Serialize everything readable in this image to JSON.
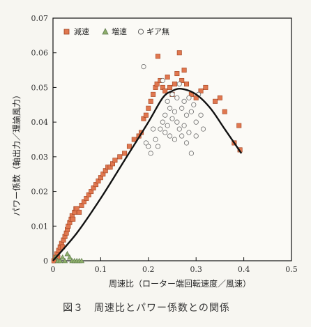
{
  "caption": "図３　周速比とパワー係数との関係",
  "chart_data": {
    "type": "scatter",
    "xlabel": "周速比（ローター端回転速度／風速）",
    "ylabel": "パワー係数（軸出力／理論風力）",
    "xlim": [
      0,
      0.5
    ],
    "ylim": [
      0,
      0.07
    ],
    "xticks": [
      "0",
      "0.1",
      "0.2",
      "0.3",
      "0.4",
      "0.5"
    ],
    "yticks": [
      "0",
      "0.01",
      "0.02",
      "0.03",
      "0.04",
      "0.05",
      "0.06",
      "0.07"
    ],
    "legend_position": "top-left",
    "series": [
      {
        "name": "減速",
        "marker": "square",
        "color": "#e0774f",
        "points": [
          [
            0.002,
            0.0
          ],
          [
            0.005,
            0.001
          ],
          [
            0.008,
            0.002
          ],
          [
            0.01,
            0.001
          ],
          [
            0.012,
            0.003
          ],
          [
            0.015,
            0.004
          ],
          [
            0.018,
            0.005
          ],
          [
            0.02,
            0.004
          ],
          [
            0.022,
            0.006
          ],
          [
            0.025,
            0.007
          ],
          [
            0.028,
            0.008
          ],
          [
            0.03,
            0.009
          ],
          [
            0.032,
            0.01
          ],
          [
            0.035,
            0.011
          ],
          [
            0.038,
            0.012
          ],
          [
            0.04,
            0.013
          ],
          [
            0.042,
            0.012
          ],
          [
            0.045,
            0.014
          ],
          [
            0.048,
            0.015
          ],
          [
            0.05,
            0.015
          ],
          [
            0.055,
            0.014
          ],
          [
            0.06,
            0.016
          ],
          [
            0.065,
            0.017
          ],
          [
            0.07,
            0.018
          ],
          [
            0.075,
            0.019
          ],
          [
            0.08,
            0.02
          ],
          [
            0.085,
            0.021
          ],
          [
            0.09,
            0.022
          ],
          [
            0.095,
            0.023
          ],
          [
            0.1,
            0.024
          ],
          [
            0.105,
            0.025
          ],
          [
            0.11,
            0.026
          ],
          [
            0.115,
            0.027
          ],
          [
            0.12,
            0.027
          ],
          [
            0.125,
            0.028
          ],
          [
            0.13,
            0.029
          ],
          [
            0.14,
            0.03
          ],
          [
            0.15,
            0.031
          ],
          [
            0.16,
            0.033
          ],
          [
            0.17,
            0.035
          ],
          [
            0.18,
            0.036
          ],
          [
            0.185,
            0.037
          ],
          [
            0.19,
            0.041
          ],
          [
            0.195,
            0.042
          ],
          [
            0.2,
            0.044
          ],
          [
            0.205,
            0.046
          ],
          [
            0.21,
            0.048
          ],
          [
            0.215,
            0.05
          ],
          [
            0.218,
            0.051
          ],
          [
            0.22,
            0.059
          ],
          [
            0.225,
            0.052
          ],
          [
            0.23,
            0.05
          ],
          [
            0.235,
            0.049
          ],
          [
            0.24,
            0.053
          ],
          [
            0.245,
            0.05
          ],
          [
            0.25,
            0.048
          ],
          [
            0.255,
            0.051
          ],
          [
            0.26,
            0.054
          ],
          [
            0.265,
            0.06
          ],
          [
            0.27,
            0.052
          ],
          [
            0.275,
            0.055
          ],
          [
            0.28,
            0.051
          ],
          [
            0.29,
            0.048
          ],
          [
            0.3,
            0.047
          ],
          [
            0.31,
            0.049
          ],
          [
            0.32,
            0.05
          ],
          [
            0.34,
            0.046
          ],
          [
            0.35,
            0.047
          ],
          [
            0.36,
            0.043
          ],
          [
            0.38,
            0.034
          ],
          [
            0.39,
            0.039
          ],
          [
            0.392,
            0.032
          ]
        ]
      },
      {
        "name": "増速",
        "marker": "triangle",
        "color": "#8fae6b",
        "points": [
          [
            0.005,
            0.001
          ],
          [
            0.01,
            0.0
          ],
          [
            0.015,
            0.0
          ],
          [
            0.02,
            0.001
          ],
          [
            0.025,
            0.0
          ],
          [
            0.03,
            0.002
          ],
          [
            0.035,
            0.001
          ],
          [
            0.04,
            0.0
          ],
          [
            0.045,
            0.0
          ],
          [
            0.05,
            0.0
          ],
          [
            0.055,
            0.0
          ],
          [
            0.06,
            0.0
          ]
        ]
      },
      {
        "name": "ギア無",
        "marker": "circle",
        "color": "#6b6b6b",
        "points": [
          [
            0.19,
            0.056
          ],
          [
            0.195,
            0.034
          ],
          [
            0.2,
            0.033
          ],
          [
            0.205,
            0.031
          ],
          [
            0.21,
            0.038
          ],
          [
            0.215,
            0.035
          ],
          [
            0.22,
            0.033
          ],
          [
            0.225,
            0.038
          ],
          [
            0.23,
            0.04
          ],
          [
            0.23,
            0.052
          ],
          [
            0.235,
            0.042
          ],
          [
            0.235,
            0.037
          ],
          [
            0.24,
            0.046
          ],
          [
            0.24,
            0.039
          ],
          [
            0.245,
            0.044
          ],
          [
            0.245,
            0.036
          ],
          [
            0.25,
            0.048
          ],
          [
            0.25,
            0.041
          ],
          [
            0.255,
            0.043
          ],
          [
            0.255,
            0.035
          ],
          [
            0.26,
            0.047
          ],
          [
            0.26,
            0.04
          ],
          [
            0.265,
            0.051
          ],
          [
            0.265,
            0.038
          ],
          [
            0.27,
            0.044
          ],
          [
            0.27,
            0.036
          ],
          [
            0.275,
            0.046
          ],
          [
            0.275,
            0.039
          ],
          [
            0.28,
            0.042
          ],
          [
            0.28,
            0.034
          ],
          [
            0.285,
            0.047
          ],
          [
            0.285,
            0.037
          ],
          [
            0.29,
            0.043
          ],
          [
            0.29,
            0.031
          ],
          [
            0.295,
            0.045
          ],
          [
            0.3,
            0.04
          ],
          [
            0.3,
            0.036
          ],
          [
            0.305,
            0.048
          ],
          [
            0.31,
            0.042
          ],
          [
            0.315,
            0.038
          ]
        ]
      }
    ],
    "fit_curve": [
      [
        0.0,
        -0.002
      ],
      [
        0.05,
        0.008
      ],
      [
        0.1,
        0.018
      ],
      [
        0.15,
        0.029
      ],
      [
        0.2,
        0.04
      ],
      [
        0.23,
        0.047
      ],
      [
        0.25,
        0.049
      ],
      [
        0.27,
        0.0496
      ],
      [
        0.3,
        0.048
      ],
      [
        0.33,
        0.044
      ],
      [
        0.36,
        0.038
      ],
      [
        0.395,
        0.031
      ]
    ]
  }
}
